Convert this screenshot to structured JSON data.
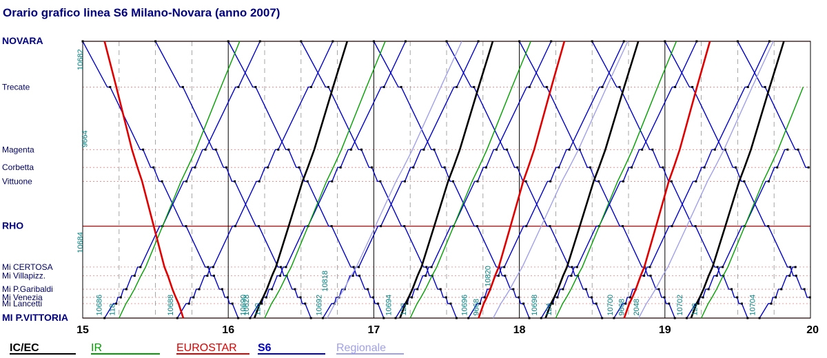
{
  "chart_data": {
    "type": "line",
    "title": "Orario grafico linea S6 Milano-Novara (anno 2007)",
    "xlim": [
      15,
      20
    ],
    "x_ticks": [
      "15",
      "16",
      "17",
      "18",
      "19",
      "20"
    ],
    "stations": [
      {
        "name": "NOVARA",
        "km": 0,
        "major": true
      },
      {
        "name": "Trecate",
        "km": 9.5,
        "major": false
      },
      {
        "name": "Magenta",
        "km": 22.5,
        "major": false
      },
      {
        "name": "Corbetta",
        "km": 26.2,
        "major": false
      },
      {
        "name": "Vittuone",
        "km": 29.1,
        "major": false
      },
      {
        "name": "RHO",
        "km": 38.4,
        "major": true
      },
      {
        "name": "Mi CERTOSA",
        "km": 46.9,
        "major": false
      },
      {
        "name": "Mi Villapizz.",
        "km": 48.7,
        "major": false
      },
      {
        "name": "Mi P.Garibaldi",
        "km": 51.5,
        "major": false
      },
      {
        "name": "Mi Venezia",
        "km": 53.2,
        "major": false
      },
      {
        "name": "Mi Lancetti",
        "km": 54.5,
        "major": false
      },
      {
        "name": "MI P.VITTORIA",
        "km": 57.5,
        "major": true
      }
    ],
    "legend": [
      {
        "name": "IC/EC",
        "color": "#000000"
      },
      {
        "name": "IR",
        "color": "#00a000"
      },
      {
        "name": "EUROSTAR",
        "color": "#e00000"
      },
      {
        "name": "S6",
        "color": "#0000c8"
      },
      {
        "name": "Regionale",
        "color": "#a0a0e8"
      }
    ],
    "series": [
      {
        "category": "S6",
        "color": "#0000c8",
        "dir": "down",
        "start": 15.0,
        "minutes_per_km": 1.0
      },
      {
        "category": "S6",
        "color": "#0000c8",
        "dir": "down",
        "start": 15.5,
        "minutes_per_km": 1.0
      },
      {
        "category": "S6",
        "color": "#0000c8",
        "dir": "down",
        "start": 16.0,
        "minutes_per_km": 1.0
      },
      {
        "category": "S6",
        "color": "#0000c8",
        "dir": "down",
        "start": 16.5,
        "minutes_per_km": 1.0
      },
      {
        "category": "S6",
        "color": "#0000c8",
        "dir": "down",
        "start": 17.0,
        "minutes_per_km": 1.0
      },
      {
        "category": "S6",
        "color": "#0000c8",
        "dir": "down",
        "start": 17.5,
        "minutes_per_km": 1.0
      },
      {
        "category": "S6",
        "color": "#0000c8",
        "dir": "down",
        "start": 18.0,
        "minutes_per_km": 1.0
      },
      {
        "category": "S6",
        "color": "#0000c8",
        "dir": "down",
        "start": 18.5,
        "minutes_per_km": 1.0
      },
      {
        "category": "S6",
        "color": "#0000c8",
        "dir": "down",
        "start": 19.0,
        "minutes_per_km": 1.0
      },
      {
        "category": "S6",
        "color": "#0000c8",
        "dir": "down",
        "start": 19.5,
        "minutes_per_km": 1.0
      },
      {
        "category": "S6",
        "color": "#0000c8",
        "dir": "up",
        "start": 15.15,
        "minutes_per_km": 1.0
      },
      {
        "category": "S6",
        "color": "#0000c8",
        "dir": "up",
        "start": 15.65,
        "minutes_per_km": 1.0
      },
      {
        "category": "S6",
        "color": "#0000c8",
        "dir": "up",
        "start": 16.15,
        "minutes_per_km": 1.0
      },
      {
        "category": "S6",
        "color": "#0000c8",
        "dir": "up",
        "start": 16.65,
        "minutes_per_km": 1.0
      },
      {
        "category": "S6",
        "color": "#0000c8",
        "dir": "up",
        "start": 17.15,
        "minutes_per_km": 1.0
      },
      {
        "category": "S6",
        "color": "#0000c8",
        "dir": "up",
        "start": 17.65,
        "minutes_per_km": 1.0
      },
      {
        "category": "S6",
        "color": "#0000c8",
        "dir": "up",
        "start": 18.15,
        "minutes_per_km": 1.0
      },
      {
        "category": "S6",
        "color": "#0000c8",
        "dir": "up",
        "start": 18.65,
        "minutes_per_km": 1.0
      },
      {
        "category": "S6",
        "color": "#0000c8",
        "dir": "up",
        "start": 19.15,
        "minutes_per_km": 1.0
      },
      {
        "category": "S6",
        "color": "#0000c8",
        "dir": "up",
        "start": 19.65,
        "minutes_per_km": 1.0
      },
      {
        "category": "IR",
        "color": "#00a000",
        "dir": "up",
        "start": 15.25,
        "minutes_per_km": 0.75
      },
      {
        "category": "IR",
        "color": "#00a000",
        "dir": "up",
        "start": 16.25,
        "minutes_per_km": 0.75
      },
      {
        "category": "IR",
        "color": "#00a000",
        "dir": "up",
        "start": 17.25,
        "minutes_per_km": 0.75
      },
      {
        "category": "IR",
        "color": "#00a000",
        "dir": "up",
        "start": 18.25,
        "minutes_per_km": 0.75
      },
      {
        "category": "IR",
        "color": "#00a000",
        "dir": "up",
        "start": 19.25,
        "minutes_per_km": 0.75
      },
      {
        "category": "IC/EC",
        "color": "#000000",
        "dir": "up",
        "start": 16.18,
        "minutes_per_km": 0.55
      },
      {
        "category": "IC/EC",
        "color": "#000000",
        "dir": "up",
        "start": 17.18,
        "minutes_per_km": 0.55
      },
      {
        "category": "IC/EC",
        "color": "#000000",
        "dir": "up",
        "start": 18.18,
        "minutes_per_km": 0.55
      },
      {
        "category": "IC/EC",
        "color": "#000000",
        "dir": "up",
        "start": 19.18,
        "minutes_per_km": 0.55
      },
      {
        "category": "EUROSTAR",
        "color": "#e00000",
        "dir": "down",
        "start": 15.15,
        "minutes_per_km": 0.45
      },
      {
        "category": "EUROSTAR",
        "color": "#e00000",
        "dir": "up",
        "start": 17.72,
        "minutes_per_km": 0.5
      },
      {
        "category": "EUROSTAR",
        "color": "#e00000",
        "dir": "up",
        "start": 18.72,
        "minutes_per_km": 0.5
      },
      {
        "category": "Regionale",
        "color": "#a0a0e8",
        "dir": "up",
        "start": 16.68,
        "minutes_per_km": 0.85
      },
      {
        "category": "Regionale",
        "color": "#a0a0e8",
        "dir": "up",
        "start": 17.82,
        "minutes_per_km": 0.85
      },
      {
        "category": "Regionale",
        "color": "#a0a0e8",
        "dir": "up",
        "start": 18.82,
        "minutes_per_km": 0.85
      }
    ],
    "train_numbers": [
      {
        "text": "10682",
        "t": 15.0,
        "km": 6
      },
      {
        "text": "9664",
        "t": 15.03,
        "km": 22
      },
      {
        "text": "10684",
        "t": 15.0,
        "km": 44
      },
      {
        "text": "10686",
        "t": 15.13,
        "km": 57
      },
      {
        "text": "118",
        "t": 15.22,
        "km": 57
      },
      {
        "text": "10688",
        "t": 15.62,
        "km": 57
      },
      {
        "text": "10690",
        "t": 16.12,
        "km": 57
      },
      {
        "text": "10628",
        "t": 16.14,
        "km": 57
      },
      {
        "text": "120",
        "t": 16.22,
        "km": 57
      },
      {
        "text": "10692",
        "t": 16.64,
        "km": 57
      },
      {
        "text": "10818",
        "t": 16.68,
        "km": 52
      },
      {
        "text": "10694",
        "t": 17.12,
        "km": 57
      },
      {
        "text": "122",
        "t": 17.22,
        "km": 57
      },
      {
        "text": "10696",
        "t": 17.64,
        "km": 57
      },
      {
        "text": "9668",
        "t": 17.72,
        "km": 57
      },
      {
        "text": "10820",
        "t": 17.8,
        "km": 51
      },
      {
        "text": "10698",
        "t": 18.12,
        "km": 57
      },
      {
        "text": "124",
        "t": 18.22,
        "km": 57
      },
      {
        "text": "10700",
        "t": 18.64,
        "km": 57
      },
      {
        "text": "9668",
        "t": 18.72,
        "km": 57
      },
      {
        "text": "2048",
        "t": 18.82,
        "km": 57
      },
      {
        "text": "10702",
        "t": 19.12,
        "km": 57
      },
      {
        "text": "126",
        "t": 19.22,
        "km": 57
      },
      {
        "text": "10704",
        "t": 19.62,
        "km": 57
      }
    ]
  }
}
